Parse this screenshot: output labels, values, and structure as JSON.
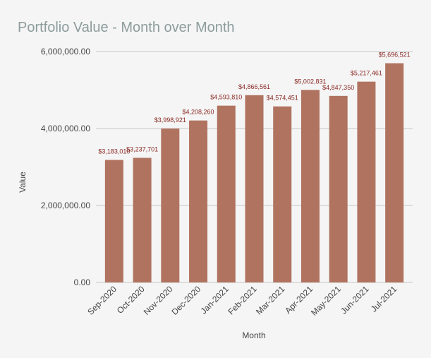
{
  "chart_data": {
    "type": "bar",
    "title": "Portfolio Value - Month over Month",
    "x_label": "Month",
    "y_label": "Value",
    "categories": [
      "Sep-2020",
      "Oct-2020",
      "Nov-2020",
      "Dec-2020",
      "Jan-2021",
      "Feb-2021",
      "Mar-2021",
      "Apr-2021",
      "May-2021",
      "Jun-2021",
      "Jul-2021"
    ],
    "values": [
      3183010,
      3237701,
      3998921,
      4208260,
      4593810,
      4866561,
      4574451,
      5002831,
      4847350,
      5217461,
      5696521
    ],
    "value_labels": [
      "$3,183,010",
      "$3,237,701",
      "$3,998,921",
      "$4,208,260",
      "$4,593,810",
      "$4,866,561",
      "$4,574,451",
      "$5,002,831",
      "$4,847,350",
      "$5,217,461",
      "$5,696,521"
    ],
    "color": "#b07360",
    "ylim": [
      0,
      6000000
    ],
    "yticks": [
      {
        "value": 0,
        "label": "0.00"
      },
      {
        "value": 2000000,
        "label": "2,000,000.00"
      },
      {
        "value": 4000000,
        "label": "4,000,000.00"
      },
      {
        "value": 6000000,
        "label": "6,000,000.00"
      }
    ],
    "grid": true
  }
}
